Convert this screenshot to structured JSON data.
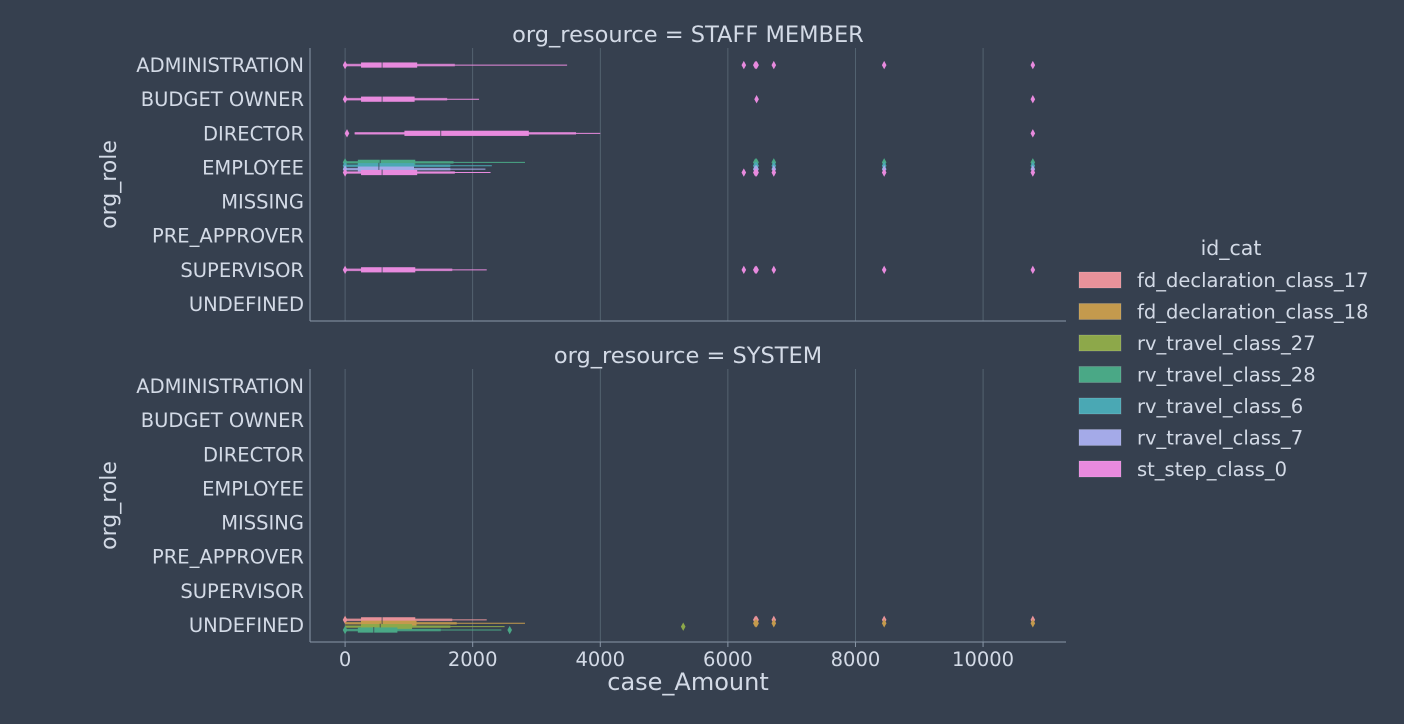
{
  "chart_data": {
    "type": "boxen",
    "xlabel": "case_Amount",
    "ylabel": "org_role",
    "xlim": [
      -550,
      11300
    ],
    "xticks": [
      0,
      2000,
      4000,
      6000,
      8000,
      10000
    ],
    "xtick_labels": [
      "0",
      "2000",
      "4000",
      "6000",
      "8000",
      "10000"
    ],
    "categories": [
      "ADMINISTRATION",
      "BUDGET OWNER",
      "DIRECTOR",
      "EMPLOYEE",
      "MISSING",
      "PRE_APPROVER",
      "SUPERVISOR",
      "UNDEFINED"
    ],
    "grid": "vertical",
    "legend": {
      "title": "id_cat",
      "placement": "right",
      "entries": [
        {
          "name": "fd_declaration_class_17",
          "color": "#e8929a"
        },
        {
          "name": "fd_declaration_class_18",
          "color": "#c49a4d"
        },
        {
          "name": "rv_travel_class_27",
          "color": "#8da84a"
        },
        {
          "name": "rv_travel_class_28",
          "color": "#4aa886"
        },
        {
          "name": "rv_travel_class_6",
          "color": "#4aa8b4"
        },
        {
          "name": "rv_travel_class_7",
          "color": "#a4aae8"
        },
        {
          "name": "st_step_class_0",
          "color": "#e88ade"
        }
      ]
    },
    "panels": [
      {
        "title": "org_resource = STAFF MEMBER",
        "boxes": [
          {
            "category": "ADMINISTRATION",
            "series": "st_step_class_0",
            "min": 0,
            "q1": 250,
            "median": 580,
            "q3": 1130,
            "whisker_low": 0,
            "whisker_high": 3480,
            "mid_high": 1720,
            "outliers": [
              0,
              6250,
              6430,
              6450,
              6720,
              8450,
              10780
            ]
          },
          {
            "category": "BUDGET OWNER",
            "series": "st_step_class_0",
            "min": 0,
            "q1": 250,
            "median": 580,
            "q3": 1090,
            "whisker_low": 0,
            "whisker_high": 2100,
            "mid_high": 1600,
            "outliers": [
              0,
              6450,
              10780
            ]
          },
          {
            "category": "DIRECTOR",
            "series": "st_step_class_0",
            "min": 100,
            "q1": 930,
            "median": 1500,
            "q3": 2880,
            "whisker_low": 150,
            "whisker_high": 4000,
            "mid_high": 3620,
            "outliers": [
              30,
              10780
            ]
          },
          {
            "category": "EMPLOYEE",
            "series": "rv_travel_class_28",
            "min": 0,
            "q1": 200,
            "median": 550,
            "q3": 1100,
            "whisker_low": 0,
            "whisker_high": 2820,
            "mid_high": 1700,
            "outliers": [
              0,
              6430,
              6450,
              6720,
              8450,
              10780
            ]
          },
          {
            "category": "EMPLOYEE",
            "series": "rv_travel_class_6",
            "min": 0,
            "q1": 200,
            "median": 530,
            "q3": 1080,
            "whisker_low": 0,
            "whisker_high": 2300,
            "mid_high": 1650,
            "outliers": [
              0,
              6430,
              6450,
              6720,
              8450,
              10780
            ]
          },
          {
            "category": "EMPLOYEE",
            "series": "rv_travel_class_7",
            "min": 0,
            "q1": 200,
            "median": 530,
            "q3": 1080,
            "whisker_low": 0,
            "whisker_high": 2200,
            "mid_high": 1650,
            "outliers": [
              0,
              6430,
              6450,
              6720,
              8450,
              10780
            ]
          },
          {
            "category": "EMPLOYEE",
            "series": "st_step_class_0",
            "min": 0,
            "q1": 250,
            "median": 580,
            "q3": 1130,
            "whisker_low": 0,
            "whisker_high": 2280,
            "mid_high": 1720,
            "outliers": [
              0,
              6250,
              6430,
              6450,
              6720,
              8450,
              10780
            ]
          },
          {
            "category": "SUPERVISOR",
            "series": "st_step_class_0",
            "min": 0,
            "q1": 250,
            "median": 580,
            "q3": 1100,
            "whisker_low": 0,
            "whisker_high": 2220,
            "mid_high": 1680,
            "outliers": [
              0,
              6250,
              6430,
              6450,
              6720,
              8450,
              10780
            ]
          }
        ]
      },
      {
        "title": "org_resource = SYSTEM",
        "boxes": [
          {
            "category": "UNDEFINED",
            "series": "fd_declaration_class_17",
            "min": 0,
            "q1": 250,
            "median": 580,
            "q3": 1100,
            "whisker_low": 0,
            "whisker_high": 2220,
            "mid_high": 1680,
            "outliers": [
              0,
              6430,
              6450,
              6720,
              8450,
              10780
            ]
          },
          {
            "category": "UNDEFINED",
            "series": "fd_declaration_class_18",
            "min": 0,
            "q1": 250,
            "median": 580,
            "q3": 1120,
            "whisker_low": 0,
            "whisker_high": 2820,
            "mid_high": 1750,
            "outliers": [
              6430,
              6450,
              6720,
              8450,
              10780
            ]
          },
          {
            "category": "UNDEFINED",
            "series": "rv_travel_class_27",
            "min": 0,
            "q1": 250,
            "median": 550,
            "q3": 1050,
            "whisker_low": 0,
            "whisker_high": 2500,
            "mid_high": 1650,
            "outliers": [
              5300
            ]
          },
          {
            "category": "UNDEFINED",
            "series": "rv_travel_class_28",
            "min": 0,
            "q1": 200,
            "median": 450,
            "q3": 820,
            "whisker_low": 0,
            "whisker_high": 2450,
            "mid_high": 1500,
            "outliers": [
              0,
              2580
            ]
          }
        ]
      }
    ]
  }
}
